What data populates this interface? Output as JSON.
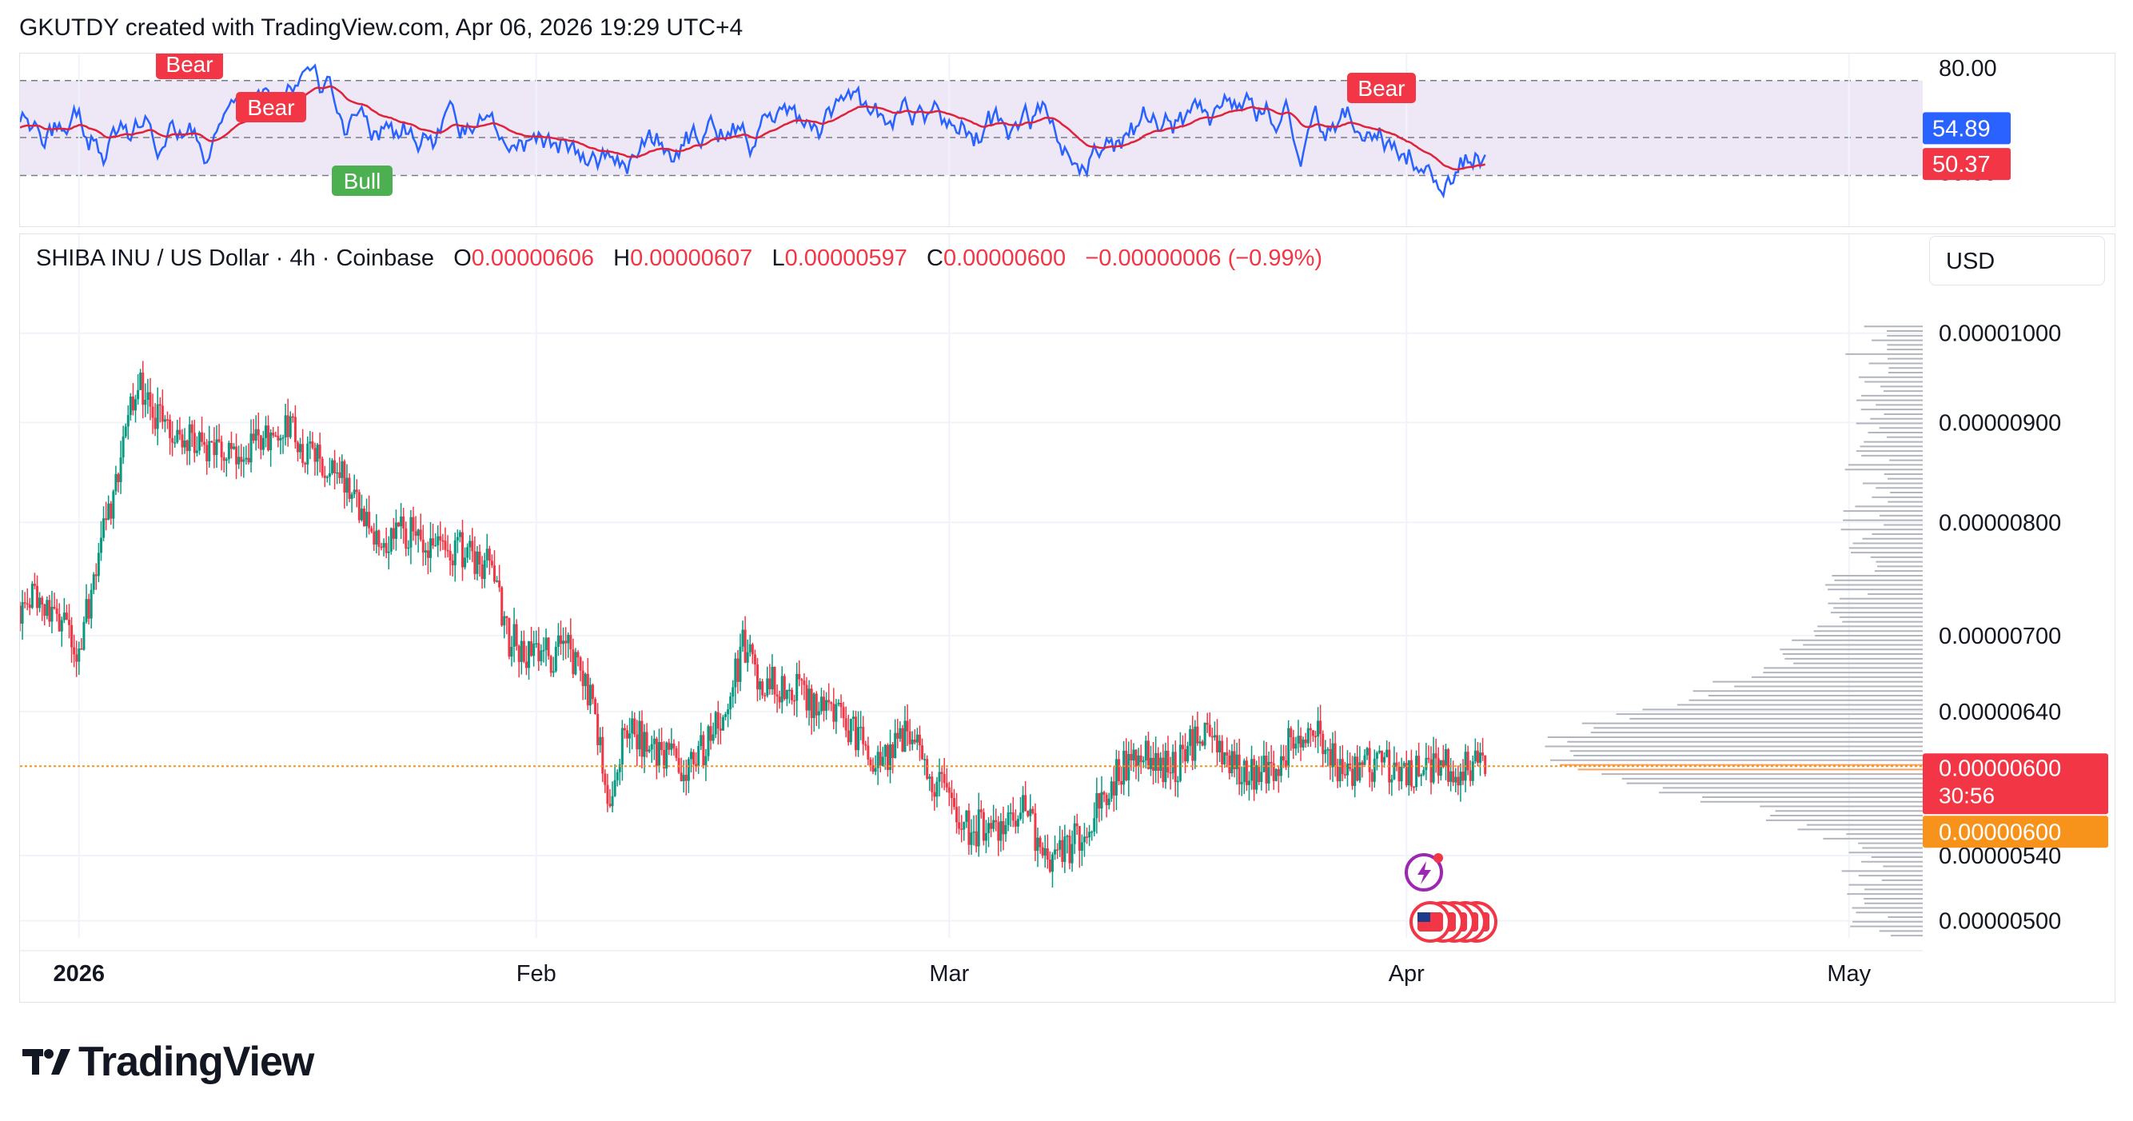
{
  "header": {
    "text": "GKUTDY created with TradingView.com, Apr 06, 2026 19:29 UTC+4"
  },
  "rsi": {
    "levels": [
      "80.00",
      "30.00"
    ],
    "rsi_value": "54.89",
    "ma_value": "50.37",
    "signals": [
      {
        "label": "Bear",
        "type": "bear"
      },
      {
        "label": "Bear",
        "type": "bear"
      },
      {
        "label": "Bull",
        "type": "bull"
      },
      {
        "label": "Bear",
        "type": "bear"
      }
    ],
    "colors": {
      "rsi": "#2962ff",
      "ma": "#e0223a",
      "band": "#ede7f6",
      "bear": "#f23645",
      "bull": "#4caf50"
    }
  },
  "legend": {
    "symbol": "SHIBA INU / US Dollar · 4h · Coinbase",
    "o_label": "O",
    "o_value": "0.00000606",
    "h_label": "H",
    "h_value": "0.00000607",
    "l_label": "L",
    "l_value": "0.00000597",
    "c_label": "C",
    "c_value": "0.00000600",
    "change": "−0.00000006 (−0.99%)"
  },
  "currency": "USD",
  "price_axis": {
    "ticks": [
      "0.00001000",
      "0.00000900",
      "0.00000800",
      "0.00000700",
      "0.00000640",
      "0.00000540",
      "0.00000500"
    ],
    "last_price": "0.00000600",
    "countdown": "30:56",
    "marker_price": "0.00000600"
  },
  "time_axis": {
    "labels": [
      "2026",
      "Feb",
      "Mar",
      "Apr",
      "May"
    ]
  },
  "events": {
    "icons": [
      "lightning-icon",
      "us-flag-icon"
    ]
  },
  "branding": {
    "wordmark": "TradingView"
  },
  "chart_data": {
    "type": "candlestick",
    "symbol": "SHIBA INU / US Dollar",
    "interval": "4h",
    "exchange": "Coinbase",
    "y_scale": "log",
    "ylim": [
      4.9e-06,
      1.05e-05
    ],
    "x_labels": [
      "2026",
      "Feb",
      "Mar",
      "Apr",
      "May"
    ],
    "close_path": [
      {
        "date": "2025-12-28",
        "close": 7.25e-06
      },
      {
        "date": "2025-12-29",
        "close": 7.4e-06
      },
      {
        "date": "2025-12-30",
        "close": 7.18e-06
      },
      {
        "date": "2025-12-31",
        "close": 7.08e-06
      },
      {
        "date": "2026-01-01",
        "close": 6.9e-06
      },
      {
        "date": "2026-01-02",
        "close": 7.45e-06
      },
      {
        "date": "2026-01-03",
        "close": 8.1e-06
      },
      {
        "date": "2026-01-04",
        "close": 8.8e-06
      },
      {
        "date": "2026-01-05",
        "close": 9.5e-06
      },
      {
        "date": "2026-01-06",
        "close": 9.1e-06
      },
      {
        "date": "2026-01-07",
        "close": 8.9e-06
      },
      {
        "date": "2026-01-09",
        "close": 8.75e-06
      },
      {
        "date": "2026-01-11",
        "close": 8.65e-06
      },
      {
        "date": "2026-01-13",
        "close": 8.8e-06
      },
      {
        "date": "2026-01-15",
        "close": 8.95e-06
      },
      {
        "date": "2026-01-17",
        "close": 8.6e-06
      },
      {
        "date": "2026-01-19",
        "close": 8.4e-06
      },
      {
        "date": "2026-01-21",
        "close": 7.8e-06
      },
      {
        "date": "2026-01-23",
        "close": 7.95e-06
      },
      {
        "date": "2026-01-25",
        "close": 7.7e-06
      },
      {
        "date": "2026-01-27",
        "close": 7.75e-06
      },
      {
        "date": "2026-01-29",
        "close": 7.6e-06
      },
      {
        "date": "2026-01-30",
        "close": 7e-06
      },
      {
        "date": "2026-02-01",
        "close": 6.8e-06
      },
      {
        "date": "2026-02-03",
        "close": 6.9e-06
      },
      {
        "date": "2026-02-05",
        "close": 6.4e-06
      },
      {
        "date": "2026-02-06",
        "close": 5.7e-06
      },
      {
        "date": "2026-02-07",
        "close": 6.3e-06
      },
      {
        "date": "2026-02-09",
        "close": 6.1e-06
      },
      {
        "date": "2026-02-11",
        "close": 6e-06
      },
      {
        "date": "2026-02-13",
        "close": 6.2e-06
      },
      {
        "date": "2026-02-15",
        "close": 6.9e-06
      },
      {
        "date": "2026-02-16",
        "close": 6.65e-06
      },
      {
        "date": "2026-02-18",
        "close": 6.6e-06
      },
      {
        "date": "2026-02-20",
        "close": 6.45e-06
      },
      {
        "date": "2026-02-22",
        "close": 6.3e-06
      },
      {
        "date": "2026-02-24",
        "close": 6e-06
      },
      {
        "date": "2026-02-26",
        "close": 6.25e-06
      },
      {
        "date": "2026-02-28",
        "close": 5.9e-06
      },
      {
        "date": "2026-03-02",
        "close": 5.6e-06
      },
      {
        "date": "2026-03-04",
        "close": 5.55e-06
      },
      {
        "date": "2026-03-06",
        "close": 5.7e-06
      },
      {
        "date": "2026-03-08",
        "close": 5.35e-06
      },
      {
        "date": "2026-03-10",
        "close": 5.55e-06
      },
      {
        "date": "2026-03-12",
        "close": 5.9e-06
      },
      {
        "date": "2026-03-14",
        "close": 6.1e-06
      },
      {
        "date": "2026-03-16",
        "close": 5.95e-06
      },
      {
        "date": "2026-03-18",
        "close": 6.25e-06
      },
      {
        "date": "2026-03-20",
        "close": 6e-06
      },
      {
        "date": "2026-03-22",
        "close": 5.9e-06
      },
      {
        "date": "2026-03-24",
        "close": 6.15e-06
      },
      {
        "date": "2026-03-26",
        "close": 6.2e-06
      },
      {
        "date": "2026-03-28",
        "close": 5.9e-06
      },
      {
        "date": "2026-03-30",
        "close": 6.05e-06
      },
      {
        "date": "2026-04-01",
        "close": 5.95e-06
      },
      {
        "date": "2026-04-03",
        "close": 6.03e-06
      },
      {
        "date": "2026-04-05",
        "close": 5.98e-06
      },
      {
        "date": "2026-04-06",
        "close": 6e-06
      }
    ],
    "last": {
      "open": 6.06e-06,
      "high": 6.07e-06,
      "low": 5.97e-06,
      "close": 6e-06
    },
    "rsi": {
      "upper": 80,
      "lower": 30,
      "value": 54.89,
      "ma": 50.37
    }
  }
}
